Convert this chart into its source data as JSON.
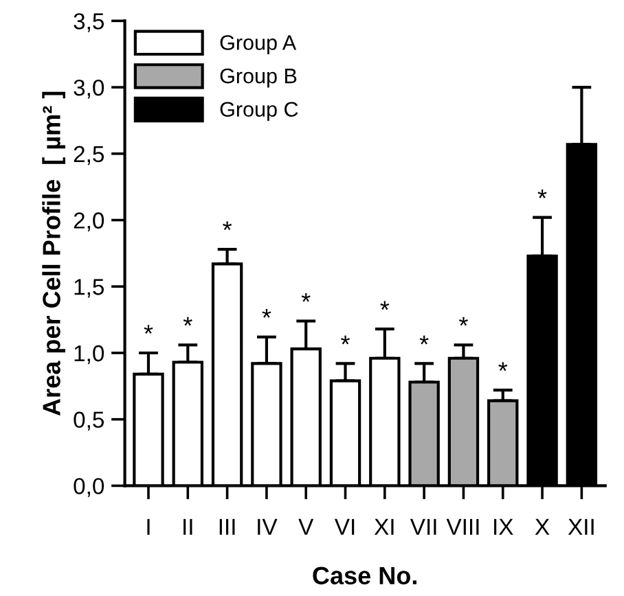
{
  "chart_data": {
    "type": "bar",
    "xlabel": "Case No.",
    "ylabel": "Area per Cell Profile  [ µm² ]",
    "categories": [
      "I",
      "II",
      "III",
      "IV",
      "V",
      "VI",
      "XI",
      "VII",
      "VIII",
      "IX",
      "X",
      "XII"
    ],
    "series": [
      {
        "name": "Group A",
        "color": "#ffffff",
        "values": [
          0.84,
          0.93,
          1.67,
          0.92,
          1.03,
          0.79,
          0.96,
          null,
          null,
          null,
          null,
          null
        ],
        "errors": [
          [
            0.84,
            1.0
          ],
          [
            0.93,
            1.06
          ],
          [
            1.67,
            1.78
          ],
          [
            0.92,
            1.12
          ],
          [
            1.03,
            1.24
          ],
          [
            0.79,
            0.92
          ],
          [
            0.96,
            1.18
          ],
          null,
          null,
          null,
          null,
          null
        ]
      },
      {
        "name": "Group B",
        "color": "#a8a8a8",
        "values": [
          null,
          null,
          null,
          null,
          null,
          null,
          null,
          0.78,
          0.96,
          0.64,
          null,
          null
        ],
        "errors": [
          null,
          null,
          null,
          null,
          null,
          null,
          null,
          [
            0.78,
            0.92
          ],
          [
            0.96,
            1.06
          ],
          [
            0.64,
            0.72
          ],
          null,
          null
        ]
      },
      {
        "name": "Group C",
        "color": "#000000",
        "values": [
          null,
          null,
          null,
          null,
          null,
          null,
          null,
          null,
          null,
          null,
          1.73,
          2.57
        ],
        "errors": [
          null,
          null,
          null,
          null,
          null,
          null,
          null,
          null,
          null,
          null,
          [
            1.73,
            2.02
          ],
          [
            2.57,
            3.0
          ]
        ]
      }
    ],
    "ylim": [
      0,
      3.5
    ],
    "yticks": [
      {
        "value": 0,
        "label": "0,0"
      },
      {
        "value": 0.5,
        "label": "0,5"
      },
      {
        "value": 1.0,
        "label": "1,0"
      },
      {
        "value": 1.5,
        "label": "1,5"
      },
      {
        "value": 2.0,
        "label": "2,0"
      },
      {
        "value": 2.5,
        "label": "2,5"
      },
      {
        "value": 3.0,
        "label": "3,0"
      },
      {
        "value": 3.5,
        "label": "3,5"
      }
    ],
    "annotations": [
      {
        "text": "*",
        "x": "I",
        "y": 1.0
      },
      {
        "text": "*",
        "x": "II",
        "y": 1.06
      },
      {
        "text": "*",
        "x": "III",
        "y": 1.78
      },
      {
        "text": "*",
        "x": "IV",
        "y": 1.12
      },
      {
        "text": "*",
        "x": "V",
        "y": 1.24
      },
      {
        "text": "*",
        "x": "VI",
        "y": 0.92
      },
      {
        "text": "*",
        "x": "XI",
        "y": 1.18
      },
      {
        "text": "*",
        "x": "VII",
        "y": 0.92
      },
      {
        "text": "*",
        "x": "VIII",
        "y": 1.06
      },
      {
        "text": "*",
        "x": "IX",
        "y": 0.72
      },
      {
        "text": "*",
        "x": "X",
        "y": 2.02
      }
    ],
    "grid": false,
    "legend": "top left"
  }
}
